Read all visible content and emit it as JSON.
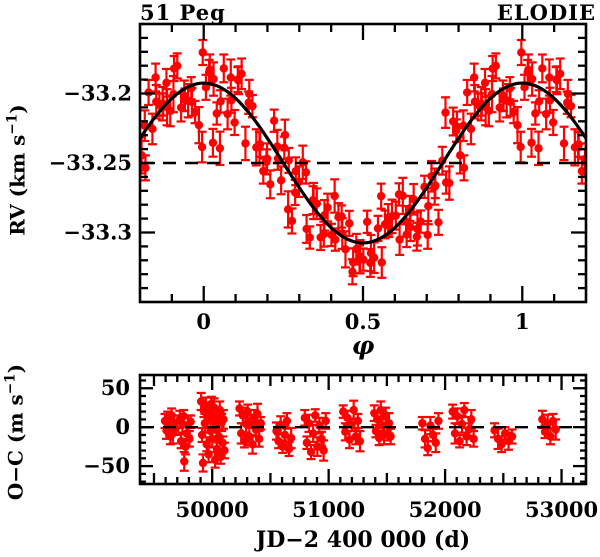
{
  "figure": {
    "title_left": "51 Peg",
    "title_right": "ELODIE",
    "background_color": "#ffffff",
    "data_color": "#ff0000",
    "line_color": "#000000"
  },
  "chart_data": [
    {
      "id": "rv-vs-phase",
      "type": "scatter",
      "xlabel": "φ",
      "ylabel": "RV (km s⁻¹)",
      "ylabel_main": "RV (km s",
      "ylabel_sup": "−1",
      "ylabel_end": ")",
      "xlim": [
        -0.2,
        1.2
      ],
      "ylim": [
        -33.35,
        -33.15
      ],
      "xticks": [
        0,
        0.5,
        1
      ],
      "xtick_labels": [
        "0",
        "0.5",
        "1"
      ],
      "xtick_minor_step": 0.1,
      "yticks": [
        -33.2,
        -33.25,
        -33.3
      ],
      "ytick_labels": [
        "−33.2",
        "−33.25",
        "−33.3"
      ],
      "ytick_minor_step": 0.01,
      "dashed_line_y": -33.25,
      "fit_curve": {
        "shape": "sinusoid",
        "gamma_kms": -33.25,
        "K_kms": 0.0575,
        "phase_of_maximum": 0
      },
      "notes": "red points = observations folded in phase, duplicated into the −0.2–0 and 1–1.2 margins; solid black curve = orbital fit; dashed line = systemic velocity"
    },
    {
      "id": "residuals-vs-jd",
      "type": "scatter",
      "xlabel": "JD−2 400 000 (d)",
      "ylabel": "O−C (m s⁻¹)",
      "ylabel_main": "O−C (m s",
      "ylabel_sup": "−1",
      "ylabel_end": ")",
      "xlim": [
        49380,
        53210
      ],
      "ylim": [
        -73,
        67
      ],
      "xticks": [
        50000,
        51000,
        52000,
        53000
      ],
      "xtick_labels": [
        "50000",
        "51000",
        "52000",
        "53000"
      ],
      "xtick_minor_step": 100,
      "xtick_medium_step": 500,
      "yticks": [
        50,
        0,
        -50
      ],
      "ytick_labels": [
        "50",
        "0",
        "−50"
      ],
      "ytick_minor_step": 10,
      "dashed_line_y": 0
    }
  ],
  "observations": {
    "jd": [
      49595,
      49607,
      49618,
      49630,
      49641,
      49652,
      49663,
      49674,
      49685,
      49722,
      49733,
      49744,
      49755,
      49760,
      49771,
      49782,
      49793,
      49804,
      49815,
      49905,
      49913,
      49921,
      49929,
      49937,
      49945,
      49953,
      49961,
      49969,
      49977,
      49985,
      49993,
      50001,
      50009,
      50017,
      50025,
      50033,
      50041,
      50049,
      50057,
      50065,
      50073,
      50081,
      50089,
      50097,
      50105,
      50235,
      50249,
      50263,
      50277,
      50291,
      50305,
      50319,
      50333,
      50347,
      50361,
      50375,
      50389,
      50403,
      50417,
      50552,
      50570,
      50588,
      50606,
      50624,
      50642,
      50660,
      50678,
      50795,
      50813,
      50831,
      50849,
      50867,
      50885,
      50903,
      50921,
      50939,
      50957,
      50975,
      51125,
      51143,
      51161,
      51179,
      51197,
      51215,
      51233,
      51251,
      51269,
      51392,
      51406,
      51420,
      51434,
      51448,
      51462,
      51476,
      51490,
      51504,
      51518,
      51532,
      51805,
      51828,
      51851,
      51874,
      51897,
      51920,
      51943,
      52065,
      52085,
      52105,
      52125,
      52145,
      52165,
      52185,
      52205,
      52225,
      52245,
      52425,
      52455,
      52485,
      52515,
      52545,
      52575,
      52835,
      52858,
      52881,
      52904,
      52927,
      52950
    ],
    "phase": [
      0.017,
      0.635,
      0.253,
      0.871,
      0.489,
      0.107,
      0.725,
      0.343,
      0.961,
      0.579,
      0.197,
      0.815,
      0.433,
      0.051,
      0.669,
      0.287,
      0.905,
      0.523,
      0.141,
      0.759,
      0.377,
      0.995,
      0.613,
      0.231,
      0.849,
      0.467,
      0.085,
      0.703,
      0.321,
      0.939,
      0.557,
      0.175,
      0.793,
      0.411,
      0.029,
      0.647,
      0.265,
      0.883,
      0.501,
      0.119,
      0.737,
      0.355,
      0.973,
      0.591,
      0.209,
      0.827,
      0.445,
      0.063,
      0.681,
      0.299,
      0.917,
      0.535,
      0.153,
      0.771,
      0.389,
      0.007,
      0.625,
      0.243,
      0.861,
      0.479,
      0.097,
      0.715,
      0.333,
      0.951,
      0.569,
      0.187,
      0.805,
      0.423,
      0.041,
      0.659,
      0.277,
      0.895,
      0.513,
      0.131,
      0.749,
      0.367,
      0.985,
      0.603,
      0.221,
      0.839,
      0.457,
      0.075,
      0.693,
      0.311,
      0.929,
      0.547,
      0.165,
      0.783,
      0.401,
      0.019,
      0.637,
      0.255,
      0.873,
      0.491,
      0.109,
      0.727,
      0.345,
      0.963,
      0.581,
      0.199,
      0.817,
      0.435,
      0.053,
      0.671,
      0.289,
      0.907,
      0.525,
      0.143,
      0.761,
      0.379,
      0.997,
      0.615,
      0.233,
      0.851,
      0.469,
      0.087,
      0.705,
      0.323,
      0.941,
      0.559,
      0.177,
      0.795,
      0.413,
      0.031,
      0.649,
      0.267,
      0.885
    ],
    "oc_ms": [
      8,
      -4,
      12,
      3,
      -12,
      15,
      -8,
      5,
      -2,
      10,
      -18,
      4,
      14,
      -44,
      -25,
      -8,
      2,
      -15,
      7,
      33,
      -10,
      -46,
      21,
      5,
      28,
      -22,
      12,
      -35,
      18,
      -5,
      30,
      -15,
      8,
      25,
      -42,
      2,
      -28,
      15,
      -12,
      22,
      -38,
      6,
      -20,
      10,
      -30,
      24,
      -8,
      15,
      -18,
      4,
      20,
      -12,
      8,
      -22,
      12,
      -3,
      17,
      -15,
      5,
      -5,
      -18,
      3,
      -25,
      -10,
      8,
      -28,
      -14,
      12,
      -20,
      5,
      -32,
      -8,
      15,
      -25,
      2,
      -15,
      -30,
      8,
      20,
      -6,
      12,
      -16,
      3,
      22,
      -12,
      8,
      -18,
      18,
      -5,
      10,
      -14,
      22,
      2,
      -10,
      15,
      -8,
      5,
      -12,
      5,
      -15,
      -27,
      2,
      -10,
      -20,
      8,
      20,
      -8,
      14,
      -18,
      4,
      22,
      -12,
      -3,
      10,
      -15,
      -4,
      -15,
      -22,
      -8,
      -18,
      -12,
      10,
      -6,
      4,
      -12,
      8,
      -3
    ],
    "err_ms": [
      9,
      11,
      8,
      12,
      10,
      9,
      13,
      10,
      8,
      11,
      9,
      11,
      8,
      12,
      10,
      9,
      13,
      10,
      8,
      11,
      9,
      11,
      8,
      12,
      10,
      9,
      13,
      10,
      8,
      11,
      9,
      11,
      8,
      12,
      10,
      9,
      13,
      10,
      8,
      11,
      9,
      11,
      8,
      12,
      10,
      9,
      13,
      10,
      8,
      11,
      9,
      11,
      8,
      12,
      10,
      9,
      13,
      10,
      8,
      11,
      9,
      11,
      8,
      12,
      10,
      9,
      13,
      10,
      8,
      11,
      9,
      11,
      8,
      12,
      10,
      9,
      13,
      10,
      8,
      11,
      9,
      11,
      8,
      12,
      10,
      9,
      13,
      10,
      8,
      11,
      9,
      11,
      8,
      12,
      10,
      9,
      13,
      10,
      8,
      11,
      9,
      11,
      8,
      12,
      10,
      9,
      13,
      10,
      8,
      11,
      9,
      11,
      8,
      12,
      10,
      9,
      13,
      10,
      8,
      11,
      9,
      11,
      8,
      12,
      10,
      9,
      13
    ]
  }
}
